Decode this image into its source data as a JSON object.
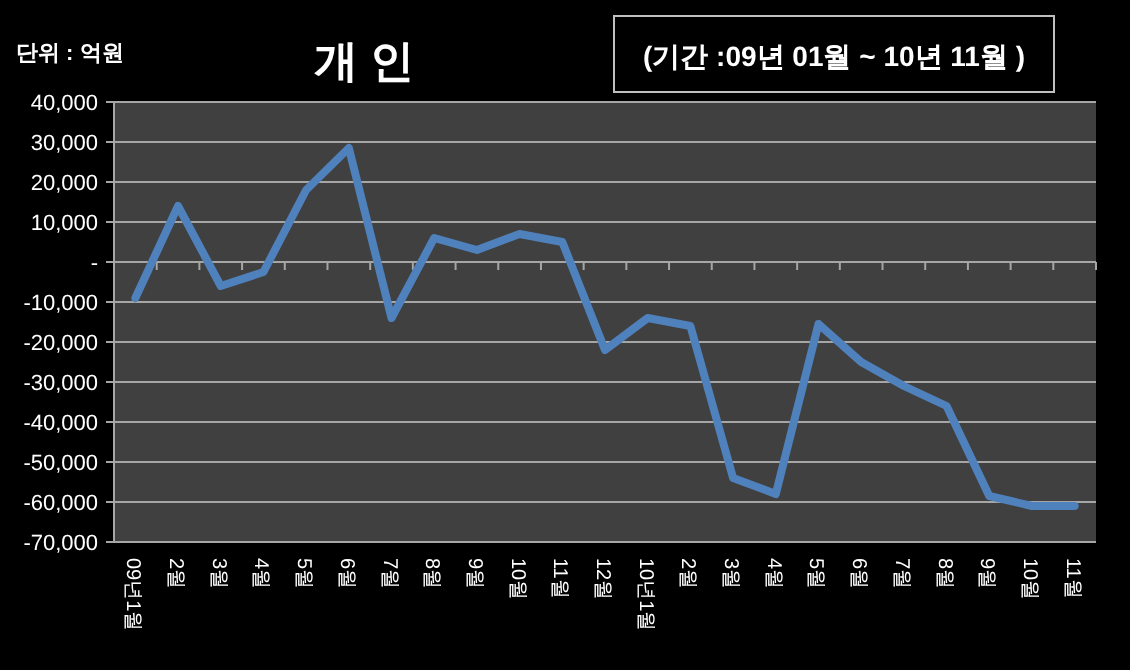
{
  "chart_data": {
    "type": "line",
    "title": "개 인",
    "annotations": [
      "단위 : 억원",
      "(기간 :09년 01월 ~ 10년 11월 )"
    ],
    "categories": [
      "09년1월",
      "2월",
      "3월",
      "4월",
      "5월",
      "6월",
      "7월",
      "8월",
      "9월",
      "10월",
      "11월",
      "12월",
      "10년1월",
      "2월",
      "3월",
      "4월",
      "5월",
      "6월",
      "7월",
      "8월",
      "9월",
      "10월",
      "11월"
    ],
    "series": [
      {
        "color": "#4f81bd",
        "values": [
          -9000,
          14000,
          -6000,
          -2500,
          18000,
          28500,
          -14000,
          6000,
          3000,
          7000,
          5000,
          -22000,
          -14000,
          -16000,
          -54000,
          -58000,
          -15500,
          -25000,
          -31000,
          -36000,
          -58500,
          -61000,
          -61000
        ]
      }
    ],
    "ylim": [
      -70000,
      40000
    ],
    "yticks": [
      {
        "value": -70000,
        "label": "-70,000"
      },
      {
        "value": -60000,
        "label": "-60,000"
      },
      {
        "value": -50000,
        "label": "-50,000"
      },
      {
        "value": -40000,
        "label": "-40,000"
      },
      {
        "value": -30000,
        "label": "-30,000"
      },
      {
        "value": -20000,
        "label": "-20,000"
      },
      {
        "value": -10000,
        "label": "-10,000"
      },
      {
        "value": 0,
        "label": "-"
      },
      {
        "value": 10000,
        "label": "10,000"
      },
      {
        "value": 20000,
        "label": "20,000"
      },
      {
        "value": 30000,
        "label": "30,000"
      },
      {
        "value": 40000,
        "label": "40,000"
      }
    ],
    "grid": "y",
    "marker": "none",
    "line_style": "solid"
  }
}
